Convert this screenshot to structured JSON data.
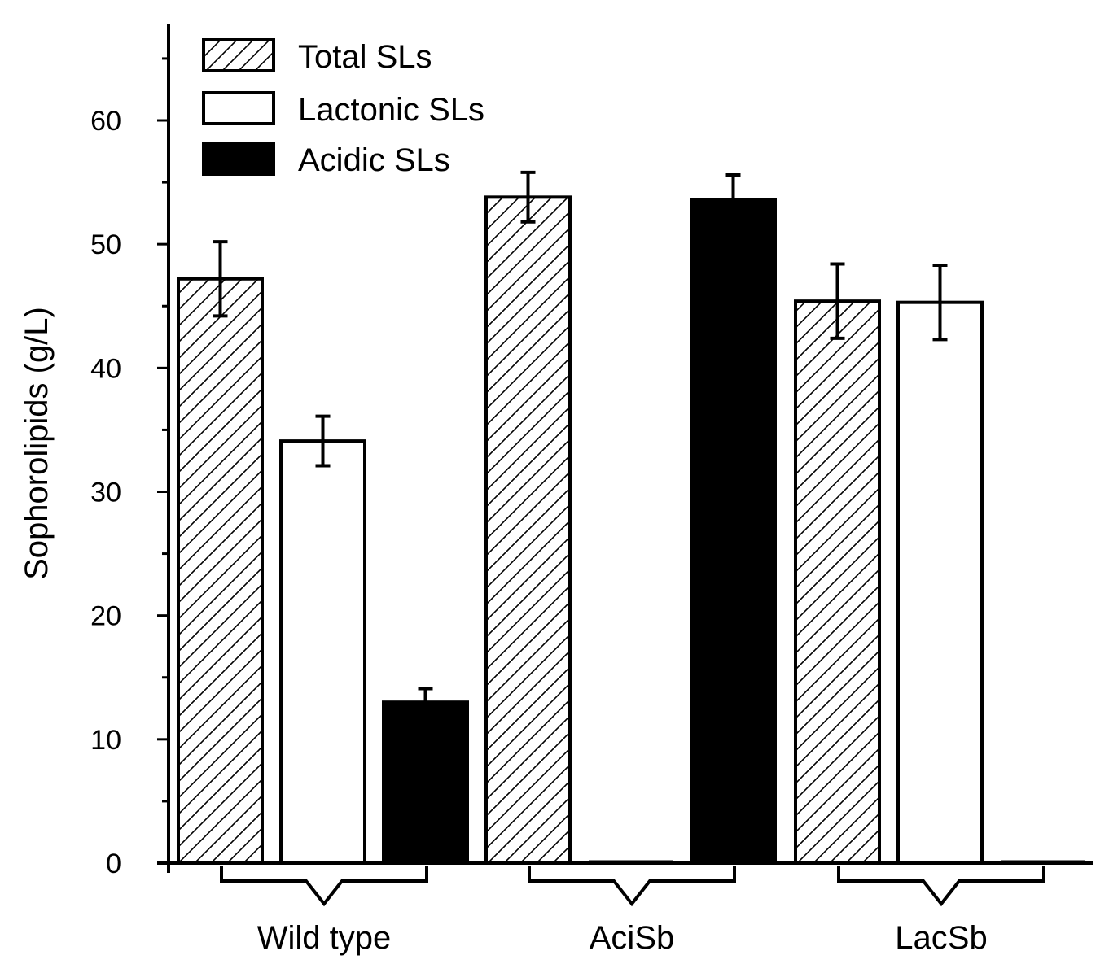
{
  "chart_data": {
    "type": "bar",
    "title": "",
    "xlabel": "",
    "ylabel": "Sophorolipids (g/L)",
    "ylim": [
      0,
      66
    ],
    "yticks": [
      0,
      10,
      20,
      30,
      40,
      50,
      60
    ],
    "y_minor_step": 5,
    "grid": false,
    "legend_position": "top-left",
    "categories": [
      "Wild type",
      "AciSb",
      "LacSb"
    ],
    "series": [
      {
        "name": "Total SLs",
        "fill": "hatch",
        "values": [
          47.2,
          53.8,
          45.4
        ],
        "errors": [
          3.0,
          2.0,
          3.0
        ]
      },
      {
        "name": "Lactonic SLs",
        "fill": "white",
        "values": [
          34.1,
          0,
          45.3
        ],
        "errors": [
          2.0,
          null,
          3.0
        ]
      },
      {
        "name": "Acidic SLs",
        "fill": "black",
        "values": [
          13.0,
          53.6,
          0
        ],
        "errors": [
          1.1,
          2.0,
          null
        ]
      }
    ],
    "colors": {
      "hatch": "#ffffff",
      "white": "#ffffff",
      "black": "#000000",
      "stroke": "#000000"
    }
  }
}
